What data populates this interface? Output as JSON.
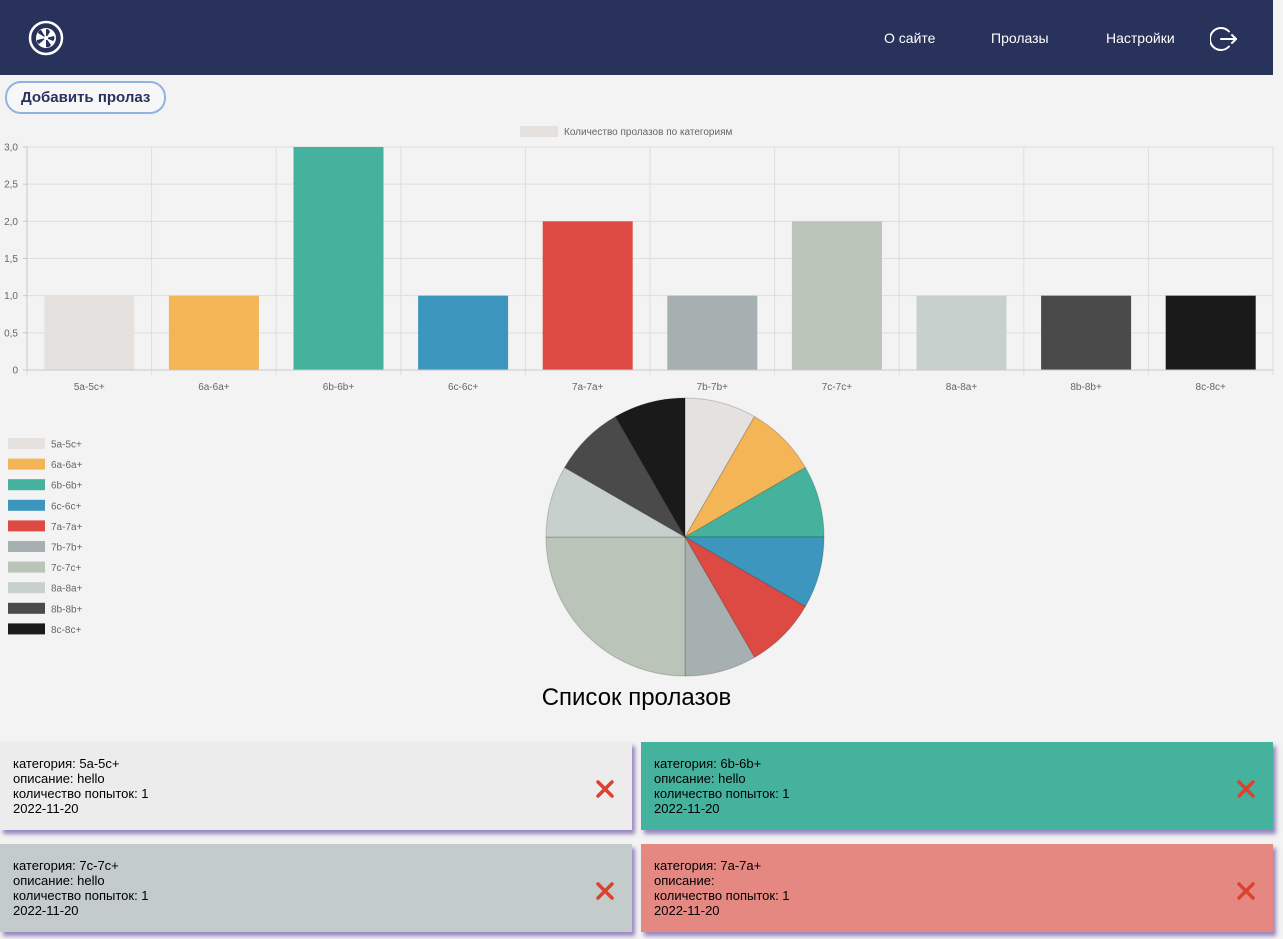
{
  "header": {
    "nav": {
      "about": "О сайте",
      "prolazy": "Пролазы",
      "settings": "Настройки"
    }
  },
  "actions": {
    "add_label": "Добавить пролаз"
  },
  "colors": {
    "header_bg": "#29325b",
    "page_bg": "#f3f3f3",
    "delete": "#d9432f",
    "card_shadow": "#7d62b4"
  },
  "chart_data": [
    {
      "type": "bar",
      "legend": "Количество пролазов по категориям",
      "legend_position": "top-center",
      "categories": [
        "5a-5c+",
        "6a-6a+",
        "6b-6b+",
        "6c-6c+",
        "7a-7a+",
        "7b-7b+",
        "7c-7c+",
        "8a-8a+",
        "8b-8b+",
        "8c-8c+"
      ],
      "values": [
        1,
        1,
        3,
        1,
        2,
        1,
        2,
        1,
        1,
        1
      ],
      "colors": [
        "#e5e1df",
        "#f3b555",
        "#45b29d",
        "#3c96bd",
        "#dd4a43",
        "#a6b0b0",
        "#bbc4b8",
        "#c8d0ce",
        "#4a4a4a",
        "#1a1a1a"
      ],
      "yticks": [
        "0",
        "0,5",
        "1,0",
        "1,5",
        "2,0",
        "2,5",
        "3,0"
      ],
      "ylim": [
        0,
        3
      ],
      "grid": true
    },
    {
      "type": "pie",
      "legend_position": "left",
      "labels": [
        "5a-5c+",
        "6a-6a+",
        "6b-6b+",
        "6c-6c+",
        "7a-7a+",
        "7b-7b+",
        "7c-7c+",
        "8a-8a+",
        "8b-8b+",
        "8c-8c+"
      ],
      "values": [
        1,
        1,
        1,
        1,
        1,
        1,
        3,
        1,
        1,
        1
      ],
      "colors": [
        "#e5e1df",
        "#f3b555",
        "#45b29d",
        "#3c96bd",
        "#dd4a43",
        "#a6b0b0",
        "#bbc4b8",
        "#c8d0ce",
        "#4a4a4a",
        "#1a1a1a"
      ]
    }
  ],
  "list": {
    "title": "Список пролазов",
    "items": [
      {
        "category": "категория: 5a-5c+",
        "description": "описание: hello",
        "attempts": "количество попыток: 1",
        "date": "2022-11-20",
        "color": "#ececec"
      },
      {
        "category": "категория: 6b-6b+",
        "description": "описание: hello",
        "attempts": "количество попыток: 1",
        "date": "2022-11-20",
        "color": "#45b29d"
      },
      {
        "category": "категория: 7c-7c+",
        "description": "описание: hello",
        "attempts": "количество попыток: 1",
        "date": "2022-11-20",
        "color": "#c3cbcb"
      },
      {
        "category": "категория: 7a-7a+",
        "description": "описание: ",
        "attempts": "количество попыток: 1",
        "date": "2022-11-20",
        "color": "#e68882"
      }
    ]
  }
}
